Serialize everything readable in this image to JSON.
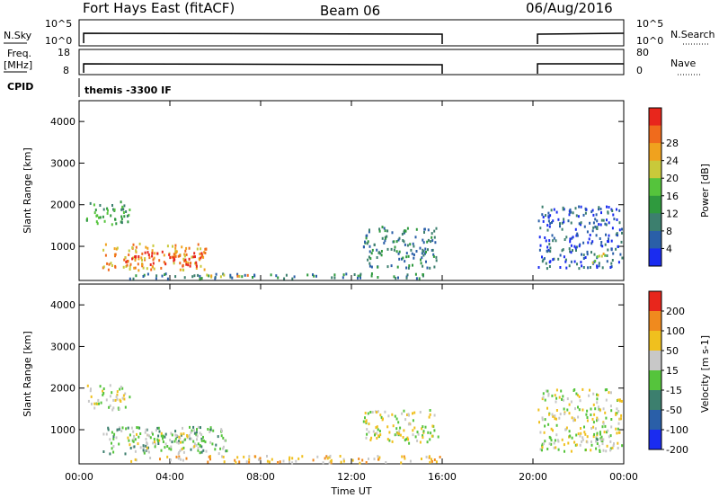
{
  "header": {
    "radar": "Fort Hays East (fitACF)",
    "beam": "Beam 06",
    "date": "06/Aug/2016"
  },
  "top_panels": {
    "nsky_label": "N.Sky",
    "nsky_ticks": [
      "10^5",
      "10^0"
    ],
    "nsearch_label": "N.Search",
    "nsearch_ticks": [
      "10^5",
      "10^0"
    ],
    "freq_label": "Freq.",
    "freq_unit": "[MHz]",
    "freq_ticks": [
      "18",
      "8"
    ],
    "nave_label": "Nave",
    "nave_ticks": [
      "80",
      "0"
    ],
    "cpid_label": "CPID",
    "cpid_value": "themis -3300 IF"
  },
  "x_axis": {
    "label": "Time UT",
    "ticks": [
      "00:00",
      "04:00",
      "08:00",
      "12:00",
      "16:00",
      "20:00",
      "00:00"
    ],
    "range_hours": [
      0,
      24
    ]
  },
  "chart_data": [
    {
      "type": "heatmap",
      "title": "",
      "ylabel": "Slant Range [km]",
      "ylim": [
        180,
        4500
      ],
      "yticks": [
        "1000",
        "2000",
        "3000",
        "4000"
      ],
      "colorbar": {
        "label": "Power [dB]",
        "ticks": [
          "4",
          "8",
          "12",
          "16",
          "20",
          "24",
          "28"
        ],
        "colors": [
          "#1a2cf0",
          "#2a5fa8",
          "#3c7f6e",
          "#2f9a3e",
          "#55c43c",
          "#c9c93a",
          "#f0a21e",
          "#f06b1c",
          "#e8261c"
        ]
      },
      "blobs": [
        {
          "t0": 0.3,
          "t1": 2.2,
          "r0": 1500,
          "r1": 2100,
          "level": 3
        },
        {
          "t0": 1.0,
          "t1": 5.6,
          "r0": 450,
          "r1": 1100,
          "level": 6
        },
        {
          "t0": 2.0,
          "t1": 5.4,
          "r0": 550,
          "r1": 900,
          "level": 8
        },
        {
          "t0": 2.2,
          "t1": 16.0,
          "r0": 250,
          "r1": 380,
          "level": 2
        },
        {
          "t0": 5.5,
          "t1": 8.0,
          "r0": 280,
          "r1": 360,
          "level": 6
        },
        {
          "t0": 12.5,
          "t1": 15.8,
          "r0": 500,
          "r1": 1500,
          "level": 2
        },
        {
          "t0": 20.2,
          "t1": 23.9,
          "r0": 500,
          "r1": 2000,
          "level": 1
        },
        {
          "t0": 22.6,
          "t1": 23.2,
          "r0": 600,
          "r1": 900,
          "level": 5
        }
      ]
    },
    {
      "type": "heatmap",
      "title": "",
      "ylabel": "Slant Range [km]",
      "ylim": [
        180,
        4500
      ],
      "yticks": [
        "1000",
        "2000",
        "3000",
        "4000"
      ],
      "colorbar": {
        "label": "Velocity [m s-1]",
        "ticks": [
          "200",
          "100",
          "50",
          "15",
          "-15",
          "-50",
          "-100",
          "-200"
        ],
        "colors": [
          "#1a2cf0",
          "#2a5fa8",
          "#3c7f6e",
          "#55c43c",
          "#c8c8c8",
          "#f0c01e",
          "#f08a1e",
          "#e8261c"
        ]
      },
      "blobs": [
        {
          "t0": 0.3,
          "t1": 2.2,
          "r0": 1500,
          "r1": 2100,
          "level": 4
        },
        {
          "t0": 1.0,
          "t1": 6.5,
          "r0": 450,
          "r1": 1100,
          "level": 3
        },
        {
          "t0": 2.0,
          "t1": 5.5,
          "r0": 550,
          "r1": 950,
          "level": 4
        },
        {
          "t0": 2.2,
          "t1": 16.0,
          "r0": 230,
          "r1": 400,
          "level": 5
        },
        {
          "t0": 12.5,
          "t1": 15.8,
          "r0": 700,
          "r1": 1500,
          "level": 4
        },
        {
          "t0": 20.2,
          "t1": 23.9,
          "r0": 500,
          "r1": 2000,
          "level": 4
        },
        {
          "t0": 22.6,
          "t1": 23.2,
          "r0": 600,
          "r1": 900,
          "level": 3
        }
      ]
    }
  ]
}
